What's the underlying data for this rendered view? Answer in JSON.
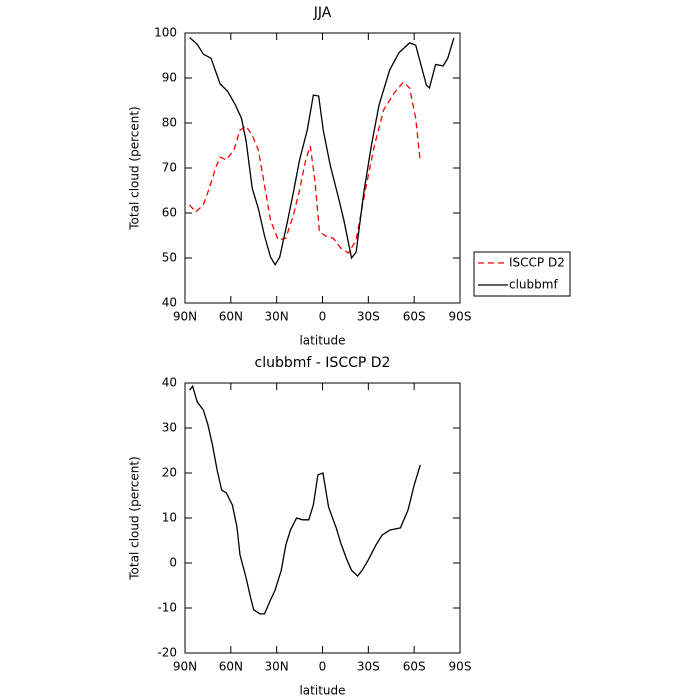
{
  "chart_data": [
    {
      "type": "line",
      "title": "JJA",
      "xlabel": "latitude",
      "ylabel": "Total cloud (percent)",
      "xlim": [
        90,
        -90
      ],
      "ylim": [
        40,
        100
      ],
      "xticks": [
        {
          "value": 90,
          "label": "90N"
        },
        {
          "value": 60,
          "label": "60N"
        },
        {
          "value": 30,
          "label": "30N"
        },
        0,
        {
          "value": -30,
          "label": "30S"
        },
        {
          "value": -60,
          "label": "60S"
        },
        {
          "value": -90,
          "label": "90S"
        }
      ],
      "yticks": [
        40,
        50,
        60,
        70,
        80,
        90,
        100
      ],
      "legend": "right",
      "series": [
        {
          "name": "ISCCP D2",
          "color": "#ff0000",
          "dashed": true,
          "x": [
            87,
            83,
            78,
            74,
            70,
            67,
            63,
            58,
            54,
            50,
            46,
            42,
            38,
            34,
            29,
            24,
            19,
            15,
            11,
            8,
            5,
            2,
            -2,
            -7,
            -12,
            -17,
            -22,
            -28,
            -34,
            -40,
            -47,
            -53,
            -57,
            -61,
            -64
          ],
          "values": [
            61.8,
            60.2,
            61.8,
            65.6,
            70,
            72.4,
            71.8,
            74,
            78.4,
            79.3,
            77.3,
            74,
            66.2,
            58.4,
            54,
            54.4,
            59.6,
            65.1,
            71.8,
            74.9,
            67.3,
            55.8,
            54.9,
            54.4,
            52.2,
            51.1,
            54,
            65,
            75,
            82.9,
            86.7,
            89.1,
            87.8,
            81.1,
            71.3
          ]
        },
        {
          "name": "clubbmf",
          "color": "#000000",
          "dashed": false,
          "x": [
            87,
            82,
            78,
            73,
            67,
            62,
            57,
            53,
            50,
            46,
            42,
            38,
            34,
            31,
            28,
            23,
            19,
            15,
            10,
            6,
            2.5,
            -0.5,
            -5,
            -10,
            -14,
            -19,
            -22,
            -27,
            -32,
            -37,
            -44,
            -50,
            -57,
            -61,
            -64,
            -68,
            -70,
            -74,
            -79,
            -82,
            -86
          ],
          "values": [
            99,
            97.5,
            95.3,
            94.4,
            88.7,
            87,
            84,
            81,
            76,
            65.5,
            61,
            55,
            50.2,
            48.5,
            50.2,
            58,
            64.7,
            71.8,
            78.4,
            86.2,
            86,
            78.4,
            70.7,
            64,
            58.4,
            50,
            51.3,
            64.5,
            75,
            84,
            91.8,
            95.6,
            97.8,
            97.3,
            93.5,
            88.4,
            87.8,
            93,
            92.7,
            94.4,
            98.9
          ]
        }
      ]
    },
    {
      "type": "line",
      "title": "clubbmf - ISCCP D2",
      "xlabel": "latitude",
      "ylabel": "Total cloud (percent)",
      "xlim": [
        90,
        -90
      ],
      "ylim": [
        -20,
        40
      ],
      "xticks": [
        {
          "value": 90,
          "label": "90N"
        },
        {
          "value": 60,
          "label": "60N"
        },
        {
          "value": 30,
          "label": "30N"
        },
        0,
        {
          "value": -30,
          "label": "30S"
        },
        {
          "value": -60,
          "label": "60S"
        },
        {
          "value": -90,
          "label": "90S"
        }
      ],
      "yticks": [
        -20,
        -10,
        0,
        10,
        20,
        30,
        40
      ],
      "series": [
        {
          "color": "#000000",
          "dashed": false,
          "x": [
            87,
            85,
            82,
            78,
            75,
            72,
            69,
            66,
            63,
            59,
            56,
            54,
            50,
            47,
            45,
            41,
            38,
            34,
            31,
            27,
            24,
            21,
            17,
            13,
            9,
            6,
            3,
            -0.3,
            -4,
            -9,
            -12,
            -16,
            -19,
            -23,
            -26,
            -30,
            -35,
            -39,
            -44,
            -51,
            -56,
            -60,
            -64
          ],
          "values": [
            38.4,
            39.3,
            35.8,
            34,
            30.7,
            26.2,
            20.7,
            16.2,
            15.6,
            12.9,
            8,
            1.8,
            -3.3,
            -7.8,
            -10.4,
            -11.3,
            -11.3,
            -8.2,
            -6,
            -1.6,
            4,
            7.3,
            10,
            9.6,
            9.6,
            12.9,
            19.6,
            20,
            12.4,
            7.8,
            4.4,
            0.7,
            -1.6,
            -2.9,
            -1.6,
            0.7,
            4,
            6.2,
            7.3,
            7.8,
            11.8,
            17.3,
            21.8
          ]
        }
      ]
    }
  ]
}
